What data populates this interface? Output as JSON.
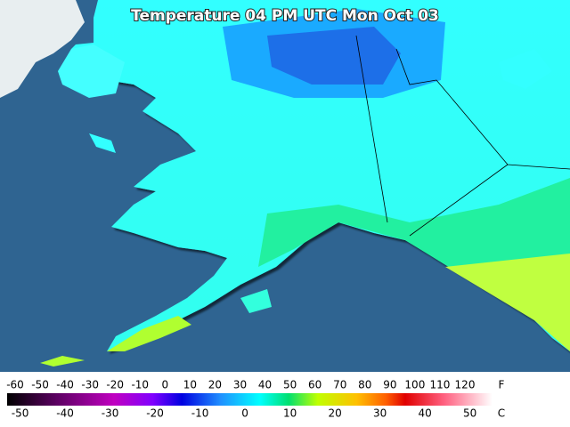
{
  "header": {
    "title": "Temperature 04 PM UTC Mon Oct 03"
  },
  "legend": {
    "f_unit": "F",
    "c_unit": "C",
    "f_labels": [
      -60,
      -50,
      -40,
      -30,
      -20,
      -10,
      0,
      10,
      20,
      30,
      40,
      50,
      60,
      70,
      80,
      90,
      100,
      110,
      120
    ],
    "c_labels": [
      -50,
      -40,
      -30,
      -20,
      -10,
      0,
      10,
      20,
      30,
      40,
      50
    ]
  }
}
